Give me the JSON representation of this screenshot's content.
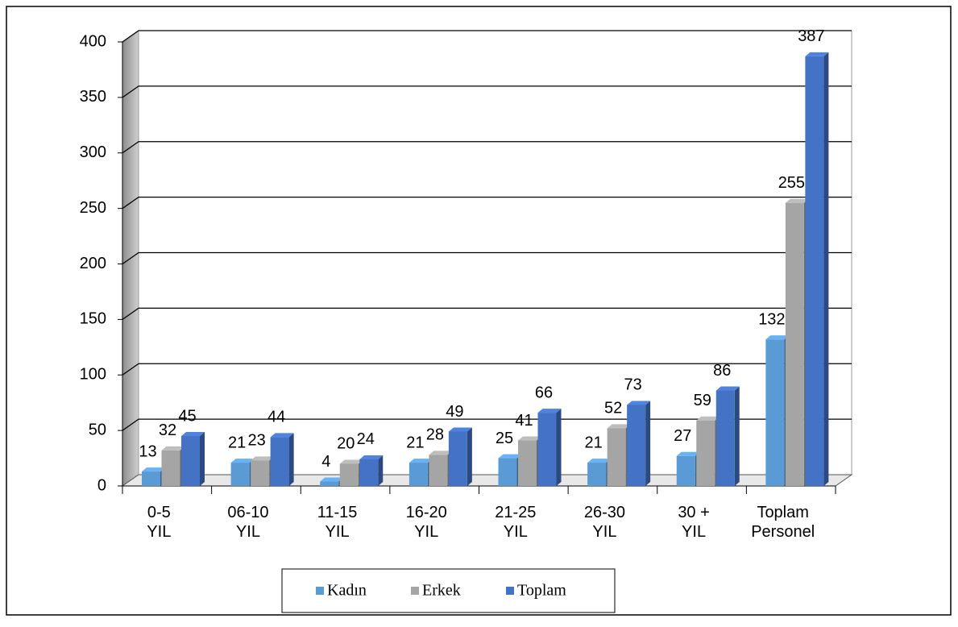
{
  "chart_data": {
    "type": "bar3d",
    "categories": [
      "0-5\nYIL",
      "06-10\nYIL",
      "11-15\nYIL",
      "16-20\nYIL",
      "21-25\nYIL",
      "26-30\nYIL",
      "30 +\nYIL",
      "Toplam\nPersonel"
    ],
    "series": [
      {
        "name": "Kadın",
        "color": "#5b9bd5",
        "values": [
          13,
          21,
          4,
          21,
          25,
          21,
          27,
          132
        ]
      },
      {
        "name": "Erkek",
        "color": "#a5a5a5",
        "values": [
          32,
          23,
          20,
          28,
          41,
          52,
          59,
          255
        ]
      },
      {
        "name": "Toplam",
        "color": "#4472c4",
        "values": [
          45,
          44,
          24,
          49,
          66,
          73,
          86,
          387
        ]
      }
    ],
    "ylim": [
      0,
      400
    ],
    "yticks": [
      0,
      50,
      100,
      150,
      200,
      250,
      300,
      350,
      400
    ],
    "grid": true,
    "legend": "bottom"
  }
}
